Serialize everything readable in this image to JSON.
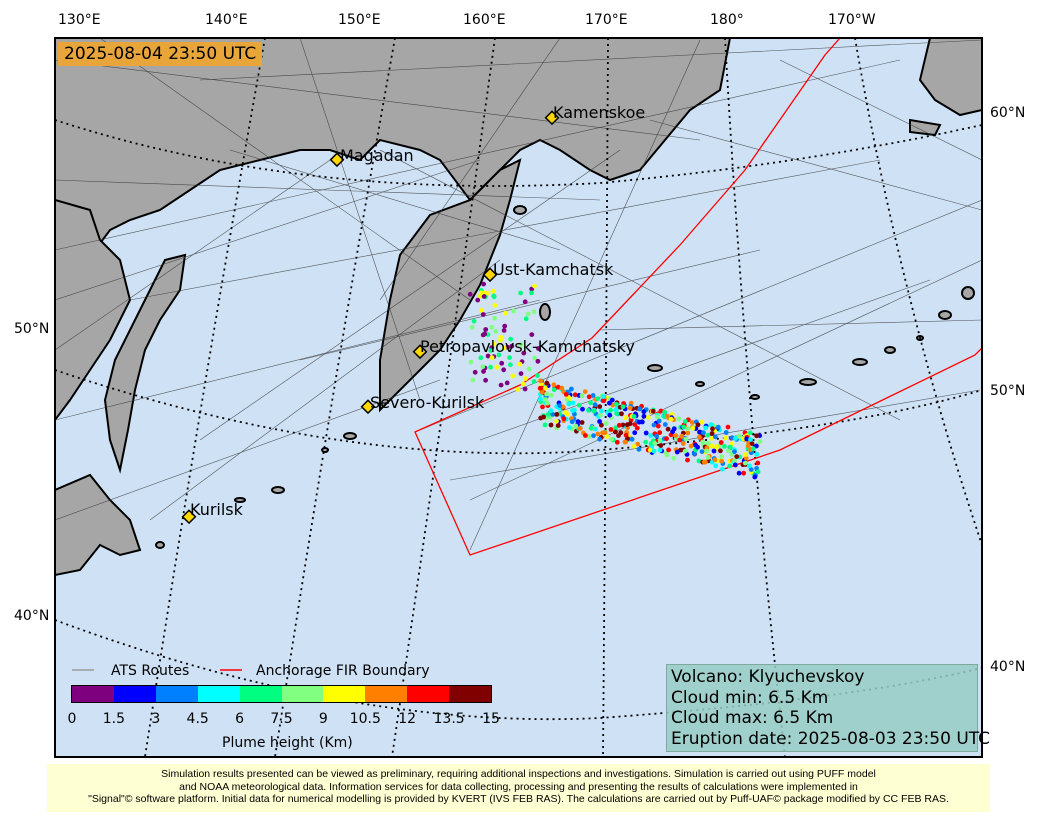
{
  "map": {
    "timestamp": "2025-08-04 23:50 UTC",
    "lon_labels_top": [
      "130°E",
      "140°E",
      "150°E",
      "160°E",
      "170°E",
      "180°",
      "170°W"
    ],
    "lat_labels_left": [
      "50°N",
      "40°N"
    ],
    "lat_labels_right": [
      "60°N",
      "50°N",
      "40°N"
    ],
    "cities": [
      "Kamenskoe",
      "Magadan",
      "Ust-Kamchatsk",
      "Petropavlovsk-Kamchatsky",
      "Severo-Kurilsk",
      "Kurilsk"
    ]
  },
  "legend": {
    "routes_label": "ATS Routes",
    "fir_label": "Anchorage FIR Boundary",
    "colorbar_title": "Plume height (Km)",
    "colorbar_ticks": [
      "0",
      "1.5",
      "3",
      "4.5",
      "6",
      "7.5",
      "9",
      "10.5",
      "12",
      "13.5",
      "15"
    ],
    "colorbar_colors": [
      "#7f007f",
      "#0000ff",
      "#0080ff",
      "#00ffff",
      "#00ff80",
      "#80ff80",
      "#ffff00",
      "#ff8000",
      "#ff0000",
      "#800000"
    ]
  },
  "info": {
    "volcano": "Volcano: Klyuchevskoy",
    "cloud_min": "Cloud min: 6.5 Km",
    "cloud_max": "Cloud max: 6.5 Km",
    "eruption_date": "Eruption date: 2025-08-03 23:50 UTC"
  },
  "footer": {
    "line1": "Simulation results presented can be viewed as preliminary, requiring additional inspections and investigations. Simulation is carried out using PUFF model",
    "line2": "and NOAA meteorological data. Information services for data collecting, processing and presenting the results of calculations were implemented in",
    "line3": "\"Signal\"© software platform. Initial data for numerical modelling is provided by KVERT (IVS FEB RAS). The calculations are carried out by Puff-UAF© package modified by CC FEB RAS."
  },
  "colors": {
    "ocean": "#cfe2f5",
    "land": "#a6a6a6",
    "fir": "#ff0000",
    "label_bg": "#e8a53a"
  }
}
